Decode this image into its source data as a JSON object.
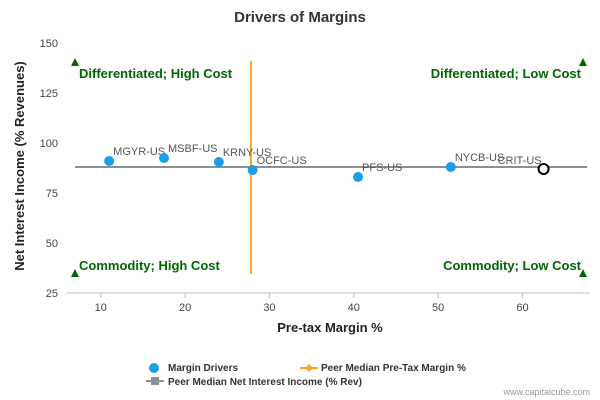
{
  "chart_data": {
    "type": "scatter",
    "title": "Drivers of Margins",
    "xlabel": "Pre-tax Margin %",
    "ylabel": "Net Interest Income (% Revenues)",
    "xlim": [
      6,
      68
    ],
    "ylim": [
      25,
      150
    ],
    "xticks": [
      10,
      20,
      30,
      40,
      50,
      60
    ],
    "yticks": [
      25,
      50,
      75,
      100,
      125,
      150
    ],
    "grid": false,
    "legend_position": "bottom-left",
    "series": [
      {
        "name": "Margin Drivers",
        "color": "#1a9ee8",
        "points": [
          {
            "label": "MGYR-US",
            "x": 11,
            "y": 91
          },
          {
            "label": "MSBF-US",
            "x": 17.5,
            "y": 92.5
          },
          {
            "label": "KRNY-US",
            "x": 24,
            "y": 90.5
          },
          {
            "label": "OCFC-US",
            "x": 28,
            "y": 86.5
          },
          {
            "label": "PFS-US",
            "x": 40.5,
            "y": 83
          },
          {
            "label": "NYCB-US",
            "x": 51.5,
            "y": 88
          }
        ]
      },
      {
        "name": "CRIT-US",
        "marker": "hollow-circle",
        "color": "#000000",
        "points": [
          {
            "label": "CRIT-US",
            "x": 62.5,
            "y": 87
          }
        ]
      }
    ],
    "reference_lines": [
      {
        "name": "Peer Median Pre-Tax Margin %",
        "orientation": "vertical",
        "value": 27.8,
        "color": "#f5a623"
      },
      {
        "name": "Peer Median Net Interest Income (% Rev)",
        "orientation": "horizontal",
        "value": 88,
        "color": "#8a8f9a"
      }
    ],
    "quadrant_labels": [
      {
        "text": "Differentiated; High Cost",
        "position": "top-left"
      },
      {
        "text": "Differentiated; Low Cost",
        "position": "top-right"
      },
      {
        "text": "Commodity; High Cost",
        "position": "bottom-left"
      },
      {
        "text": "Commodity; Low Cost",
        "position": "bottom-right"
      }
    ],
    "corner_marker_color": "#006600"
  },
  "legend": {
    "items": [
      {
        "label": "Margin Drivers"
      },
      {
        "label": "Peer Median Pre-Tax Margin %"
      },
      {
        "label": "Peer Median Net Interest Income (% Rev)"
      }
    ]
  },
  "credit": "www.capitalcube.com"
}
